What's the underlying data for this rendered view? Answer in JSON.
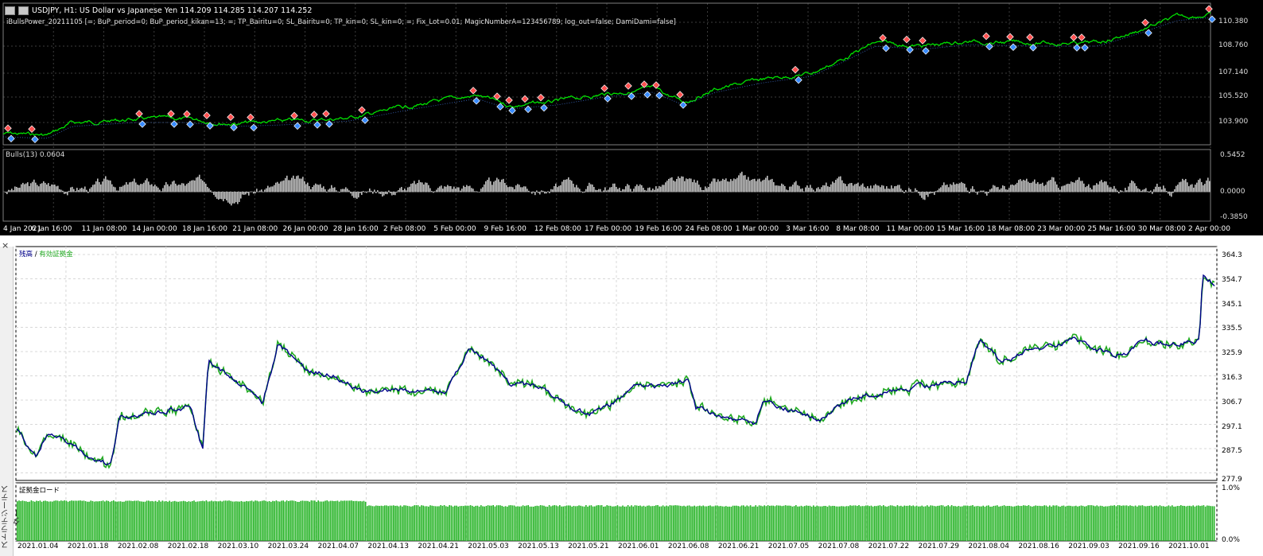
{
  "chart": {
    "symbol_line": "USDJPY, H1:  US Dollar vs Japanese Yen  114.209 114.285 114.207 114.252",
    "params": "iBullsPower_20211105 [=; BuP_period=0; BuP_period_kikan=13; =; TP_Bairitu=0; SL_Bairitu=0; TP_kin=0; SL_kin=0; =; Fix_Lot=0.01; MagicNumberA=123456789; log_out=false; DamiDami=false]",
    "price_labels": [
      "110.380",
      "108.760",
      "107.140",
      "105.520",
      "103.900"
    ],
    "indicator_label": "Bulls(13) 0.0604",
    "indicator_scale": [
      "0.5452",
      "0.0000",
      "-0.3850"
    ],
    "date_labels": [
      "4 Jan 2021",
      "6 Jan 16:00",
      "11 Jan 08:00",
      "14 Jan 00:00",
      "18 Jan 16:00",
      "21 Jan 08:00",
      "26 Jan 00:00",
      "28 Jan 16:00",
      "2 Feb 08:00",
      "5 Feb 00:00",
      "9 Feb 16:00",
      "12 Feb 08:00",
      "17 Feb 00:00",
      "19 Feb 16:00",
      "24 Feb 08:00",
      "1 Mar 00:00",
      "3 Mar 16:00",
      "8 Mar 08:00",
      "11 Mar 00:00",
      "15 Mar 16:00",
      "18 Mar 08:00",
      "23 Mar 00:00",
      "25 Mar 16:00",
      "30 Mar 08:00",
      "2 Apr 00:00"
    ],
    "colors": {
      "bg": "#000000",
      "price": "#00e000",
      "grid": "#3c3c3c",
      "bulls": "#c0c0c0"
    }
  },
  "tester": {
    "side_close": "×",
    "side_title": "ストラテジーテスター",
    "legend_balance": "残高",
    "legend_sep": " / ",
    "legend_equity": "有効証拠金",
    "load_label": "証拠金ロード",
    "balance_scale": [
      "364.3",
      "354.7",
      "345.1",
      "335.5",
      "325.9",
      "316.3",
      "306.7",
      "297.1",
      "287.5",
      "277.9"
    ],
    "load_scale": [
      "1.0%",
      "0.0%"
    ],
    "date_labels": [
      "2021.01.04",
      "2021.01.18",
      "2021.02.08",
      "2021.02.18",
      "2021.03.10",
      "2021.03.24",
      "2021.04.07",
      "2021.04.13",
      "2021.04.21",
      "2021.05.03",
      "2021.05.13",
      "2021.05.21",
      "2021.06.01",
      "2021.06.08",
      "2021.06.21",
      "2021.07.05",
      "2021.07.08",
      "2021.07.22",
      "2021.07.29",
      "2021.08.04",
      "2021.08.16",
      "2021.09.03",
      "2021.09.16",
      "2021.10.01"
    ],
    "colors": {
      "balance": "#00008b",
      "equity": "#22aa22",
      "load": "#22b222",
      "grid": "#d8d8d8"
    }
  }
}
